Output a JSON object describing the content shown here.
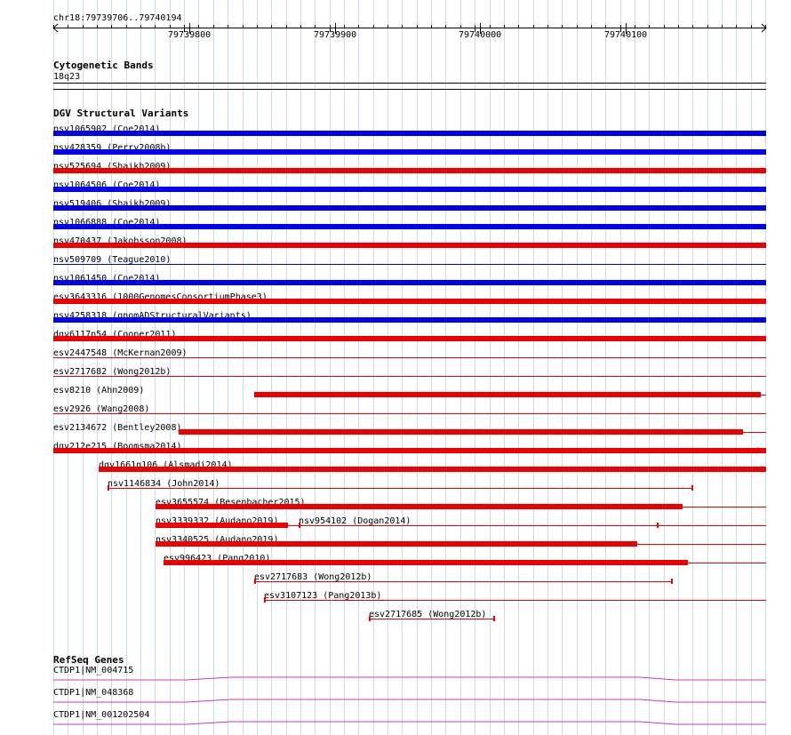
{
  "ruler": {
    "coordinates": "chr18:79739706..79740194",
    "ticks": [
      "79739800",
      "79739900",
      "79740000",
      "79740100"
    ]
  },
  "colors": {
    "gain": "#0000ee",
    "loss": "#ee0000",
    "gene": "#cc33cc",
    "grid": "#c8dceb"
  },
  "cytoband": {
    "title": "Cytogenetic Bands",
    "band": "18q23"
  },
  "dgv": {
    "title": "DGV Structural Variants",
    "variants": [
      {
        "label": "nsv1065902 (Coe2014)",
        "type": "gain",
        "style": "full"
      },
      {
        "label": "nsv428359 (Perry2008b)",
        "type": "gain",
        "style": "full"
      },
      {
        "label": "nsv525694 (Shaikh2009)",
        "type": "loss",
        "style": "full"
      },
      {
        "label": "nsv1064506 (Coe2014)",
        "type": "gain",
        "style": "full"
      },
      {
        "label": "nsv519406 (Shaikh2009)",
        "type": "gain",
        "style": "full"
      },
      {
        "label": "nsv1066888 (Coe2014)",
        "type": "gain",
        "style": "full"
      },
      {
        "label": "nsv470437 (Jakobsson2008)",
        "type": "loss",
        "style": "full"
      },
      {
        "label": "nsv509709 (Teague2010)",
        "type": "gain",
        "style": "thin-line"
      },
      {
        "label": "nsv1061450 (Coe2014)",
        "type": "gain",
        "style": "full"
      },
      {
        "label": "esv3643316 (1000GenomesConsortiumPhase3)",
        "type": "loss",
        "style": "full"
      },
      {
        "label": "nsv4258318 (gnomADStructuralVariants)",
        "type": "gain",
        "style": "full"
      },
      {
        "label": "dgv6117n54 (Cooper2011)",
        "type": "loss",
        "style": "full"
      },
      {
        "label": "esv2447548 (McKernan2009)",
        "type": "loss",
        "style": "thin-line"
      },
      {
        "label": "esv2717682 (Wong2012b)",
        "type": "loss",
        "style": "thin-line"
      },
      {
        "label": "esv8210 (Ahn2009)",
        "type": "loss",
        "style": "partial"
      },
      {
        "label": "esv2926 (Wang2008)",
        "type": "loss",
        "style": "thin-line"
      },
      {
        "label": "esv2134672 (Bentley2008)",
        "type": "loss",
        "style": "partial"
      },
      {
        "label": "dgv212e215 (Boomsma2014)",
        "type": "loss",
        "style": "full"
      },
      {
        "label": "dgv1661n106 (Alsmadi2014)",
        "type": "loss",
        "style": "partial"
      },
      {
        "label": "nsv1146834 (John2014)",
        "type": "loss",
        "style": "bracket"
      },
      {
        "label": "esv3655574 (Besenbacher2015)",
        "type": "loss",
        "style": "partial"
      },
      {
        "label": "nsv3339332 (Audano2019)",
        "type": "loss",
        "style": "partial"
      },
      {
        "label": "nsv954102 (Dogan2014)",
        "type": "loss",
        "style": "bracket"
      },
      {
        "label": "nsv3340525 (Audano2019)",
        "type": "loss",
        "style": "partial"
      },
      {
        "label": "esv996423 (Pang2010)",
        "type": "loss",
        "style": "partial"
      },
      {
        "label": "esv2717683 (Wong2012b)",
        "type": "loss",
        "style": "bracket"
      },
      {
        "label": "esv3107123 (Pang2013b)",
        "type": "loss",
        "style": "bracket-open"
      },
      {
        "label": "esv2717685 (Wong2012b)",
        "type": "loss",
        "style": "bracket"
      }
    ]
  },
  "refseq": {
    "title": "RefSeq Genes",
    "genes": [
      {
        "label": "CTDP1|NM_004715"
      },
      {
        "label": "CTDP1|NM_048368"
      },
      {
        "label": "CTDP1|NM_001202504"
      }
    ]
  }
}
